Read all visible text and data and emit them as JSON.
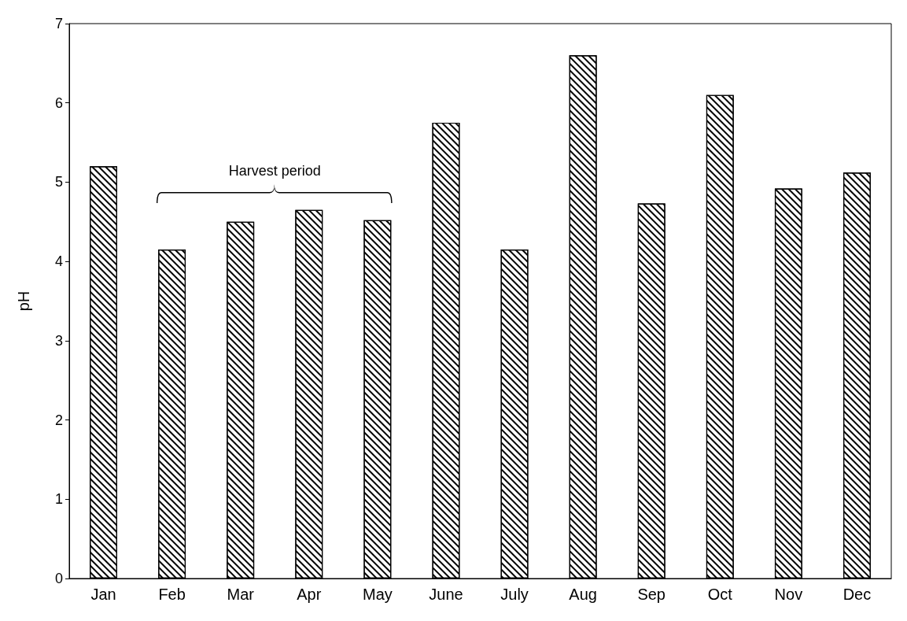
{
  "chart_data": {
    "type": "bar",
    "ylabel": "pH",
    "categories": [
      "Jan",
      "Feb",
      "Mar",
      "Apr",
      "May",
      "June",
      "July",
      "Aug",
      "Sep",
      "Oct",
      "Nov",
      "Dec"
    ],
    "values": [
      5.2,
      4.15,
      4.5,
      4.65,
      4.52,
      5.75,
      4.15,
      6.6,
      4.73,
      6.1,
      4.92,
      5.12
    ],
    "color": "#000000",
    "ylim": [
      0,
      7
    ],
    "yticks": [
      0,
      1,
      2,
      3,
      4,
      5,
      6,
      7
    ],
    "grid": false,
    "annotations": [
      "Harvest period"
    ]
  }
}
